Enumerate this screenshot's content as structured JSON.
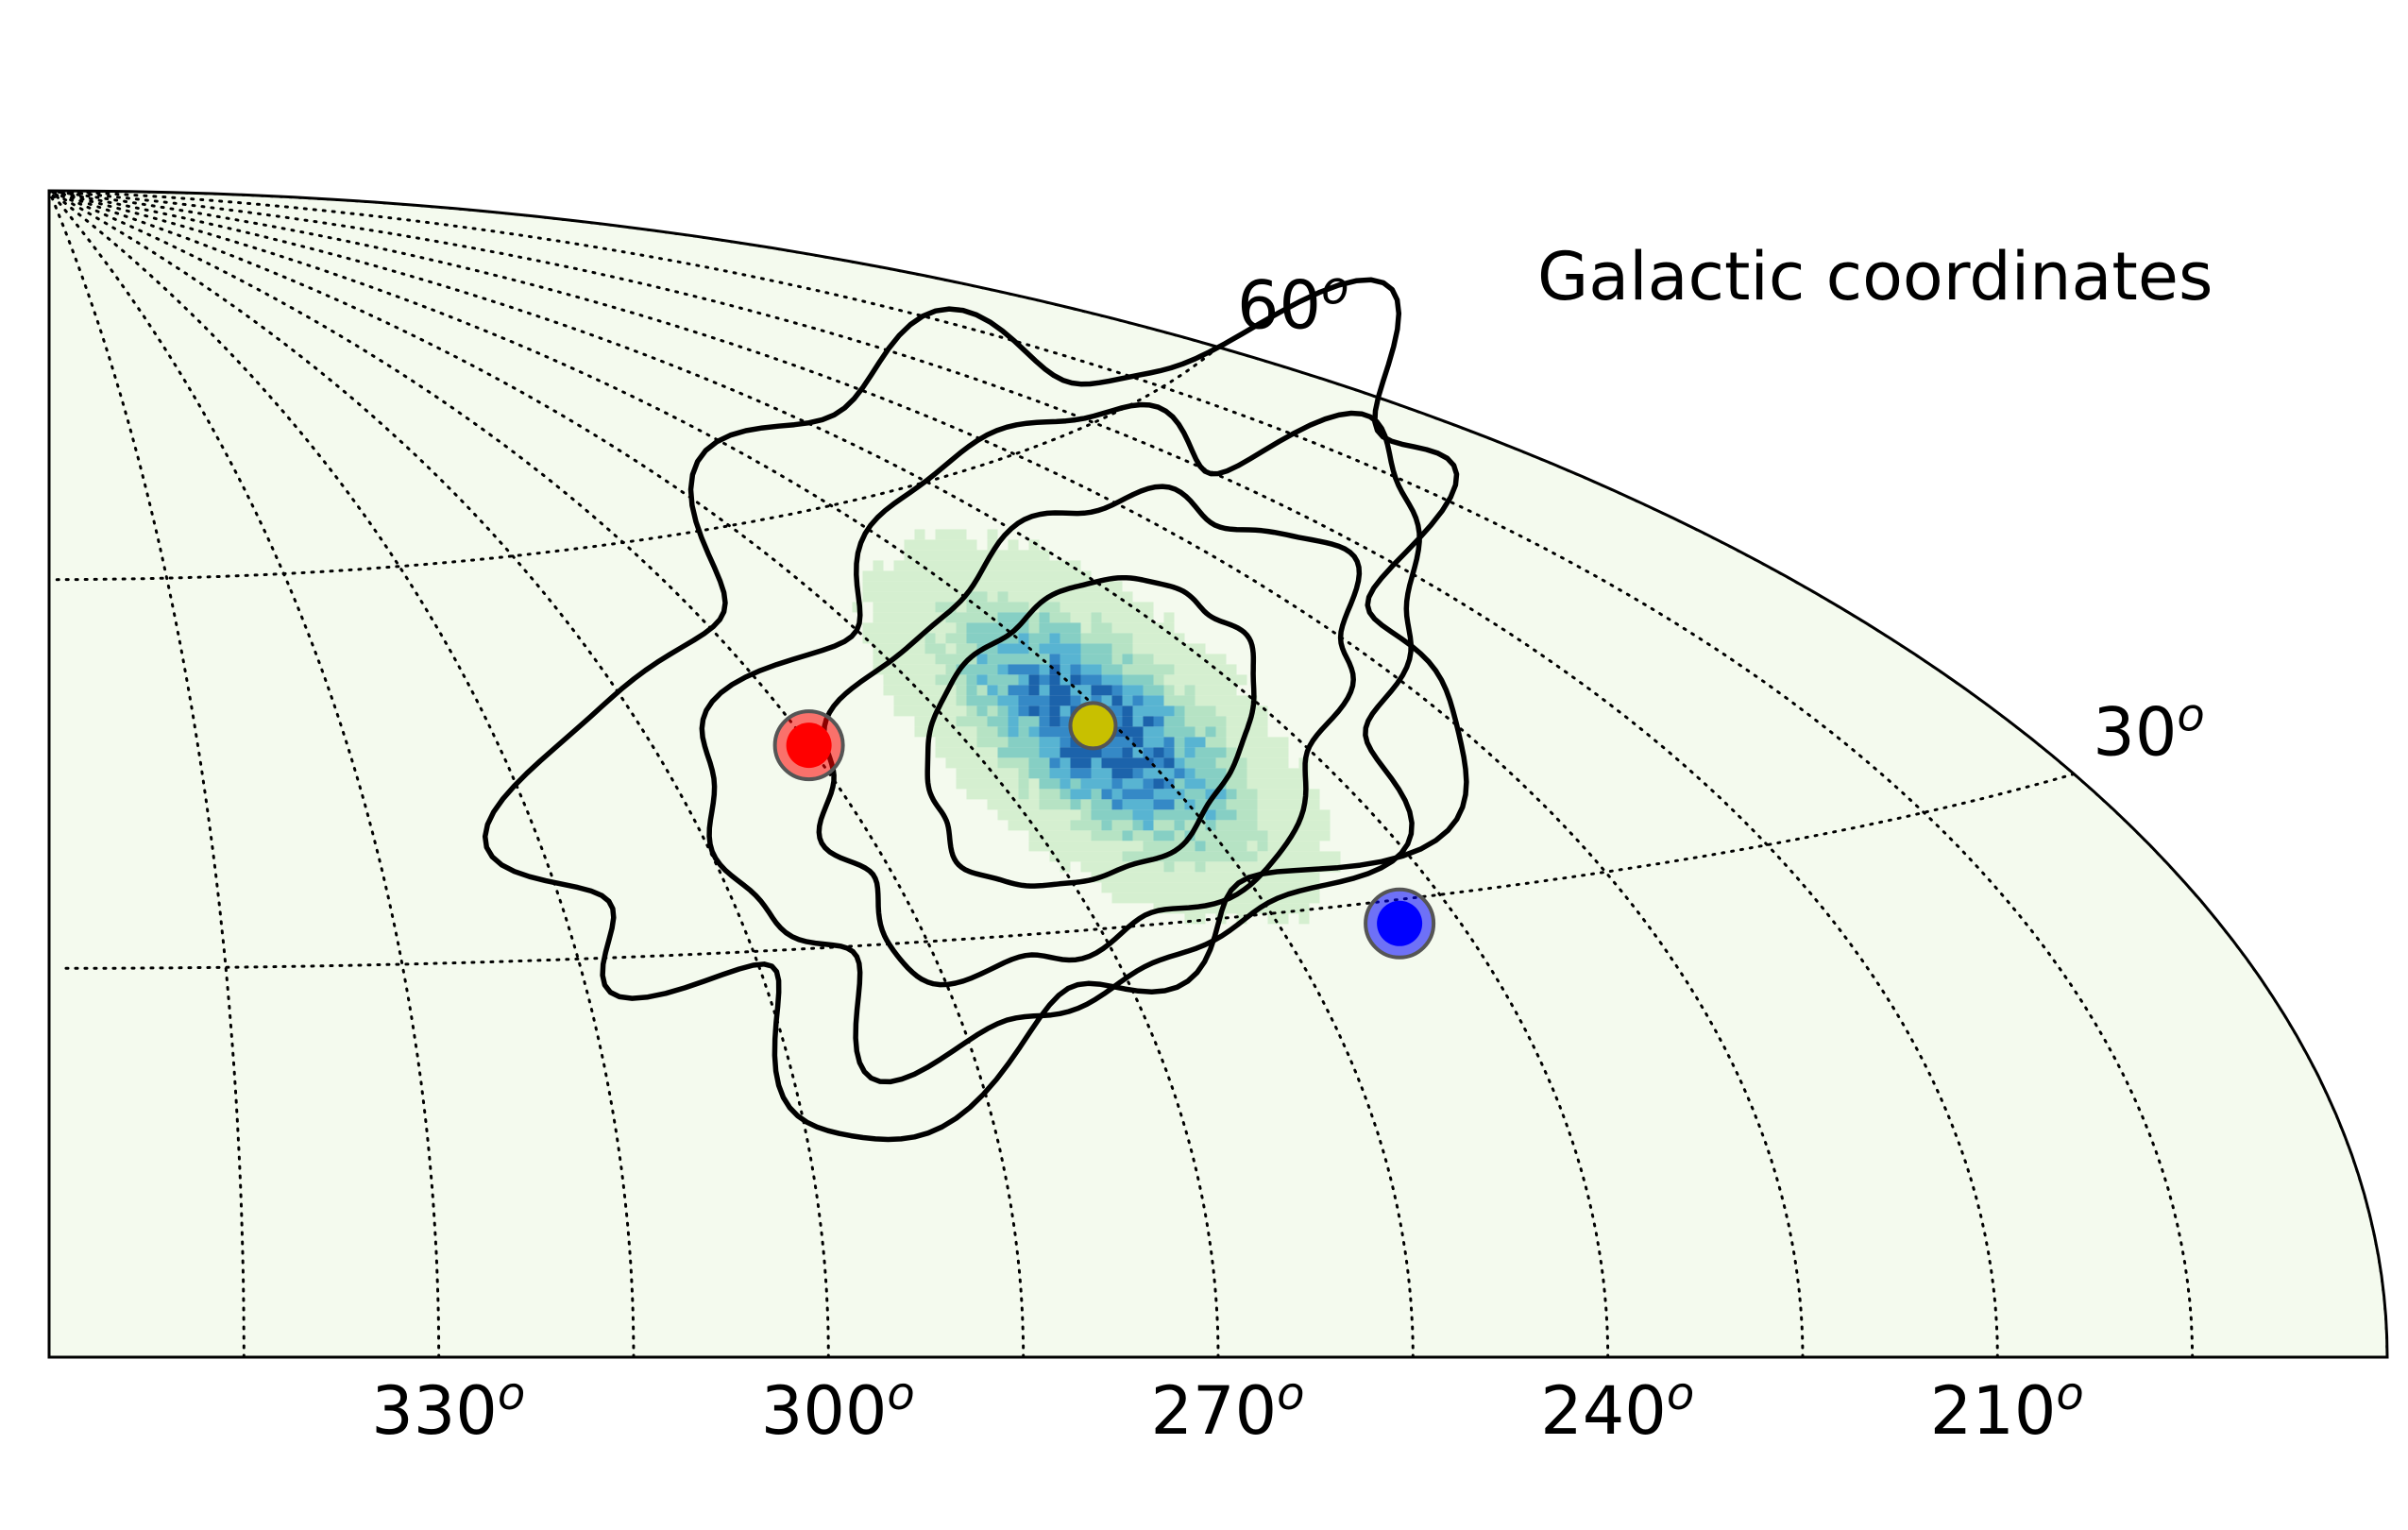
{
  "chart_data": {
    "type": "scatter",
    "projection": "Aitoff",
    "title": "Galactic coordinates",
    "xlabel": "",
    "ylabel": "",
    "x_ticks": [
      {
        "value": 330,
        "label": "330",
        "sup": "o"
      },
      {
        "value": 300,
        "label": "300",
        "sup": "o"
      },
      {
        "value": 270,
        "label": "270",
        "sup": "o"
      },
      {
        "value": 240,
        "label": "240",
        "sup": "o"
      },
      {
        "value": 210,
        "label": "210",
        "sup": "o"
      }
    ],
    "y_ticks": [
      {
        "value": 60,
        "label": "60",
        "sup": "o"
      },
      {
        "value": 30,
        "label": "30",
        "sup": "o"
      }
    ],
    "l_range": [
      180,
      360
    ],
    "b_range": [
      0,
      90
    ],
    "grid": true,
    "background_color": "#f4faee",
    "points": [
      {
        "l": 285,
        "b": 44.5,
        "color": "#ff0000"
      },
      {
        "l": 257,
        "b": 43.5,
        "color": "#c8c000"
      },
      {
        "l": 245,
        "b": 28.5,
        "color": "#0000ff"
      }
    ],
    "density": {
      "center": {
        "l": 257,
        "b": 43.5
      },
      "colormap": [
        "#f4faee",
        "#d5efd0",
        "#b6e3c4",
        "#86cfc4",
        "#58b4d2",
        "#3589c6",
        "#1c63ab"
      ]
    },
    "contours": [
      {
        "level": "inner",
        "center": {
          "l": 258,
          "b": 43
        },
        "radius_l": 17,
        "radius_b": 12,
        "tilt": -38
      },
      {
        "level": "mid",
        "center": {
          "l": 258,
          "b": 43
        },
        "radius_l": 28,
        "radius_b": 18,
        "tilt": -36
      },
      {
        "level": "outer",
        "center": {
          "l": 258,
          "b": 44
        },
        "radius_l": 38,
        "radius_b": 25,
        "tilt": -34
      },
      {
        "level": "outermost",
        "center": {
          "l": 262,
          "b": 46
        },
        "radius_l": 50,
        "radius_b": 32,
        "tilt": -32
      }
    ]
  }
}
